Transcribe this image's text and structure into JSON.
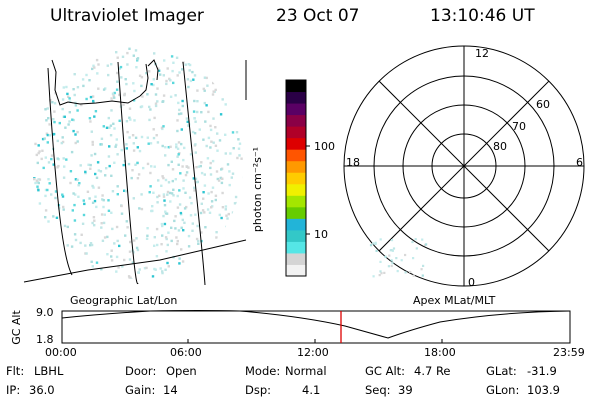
{
  "header": {
    "instrument": "Ultraviolet Imager",
    "date": "23 Oct 07",
    "time": "13:10:46 UT"
  },
  "colorbar": {
    "unit_label": "photon cm⁻²s⁻¹",
    "ticks": [
      {
        "label": "100",
        "value": 100
      },
      {
        "label": "10",
        "value": 10
      }
    ],
    "colors": [
      "#f2f2f2",
      "#d4d4d4",
      "#55e6e6",
      "#33c8c8",
      "#22b4d8",
      "#66cc00",
      "#a4e600",
      "#f0f000",
      "#ffcc00",
      "#ff9900",
      "#ff5500",
      "#dd0000",
      "#b00028",
      "#8a0046",
      "#5a0064",
      "#2a0046",
      "#000000"
    ]
  },
  "polar_grid": {
    "mlt_labels": [
      {
        "label": "12",
        "pos": "top"
      },
      {
        "label": "18",
        "pos": "left"
      },
      {
        "label": "6",
        "pos": "right"
      },
      {
        "label": "0",
        "pos": "bottom"
      }
    ],
    "mlat_labels": [
      {
        "label": "60",
        "value": 60
      },
      {
        "label": "70",
        "value": 70
      },
      {
        "label": "80",
        "value": 80
      }
    ]
  },
  "labels": {
    "left_panel": "Geographic Lat/Lon",
    "right_panel": "Apex MLat/MLT"
  },
  "orbit_plot": {
    "y_axis_label": "GC Alt",
    "y_ticks": [
      "9.0",
      "1.8"
    ],
    "x_ticks": [
      "00:00",
      "06:00",
      "12:00",
      "18:00",
      "23:59"
    ],
    "current_time_hours": 13.18,
    "marker_color": "#dd0000"
  },
  "footer": {
    "row1": [
      {
        "key": "Flt:",
        "value": "LBHL"
      },
      {
        "key": "Door:",
        "value": "Open"
      },
      {
        "key": "Mode:",
        "value": "Normal"
      },
      {
        "key": "GC Alt:",
        "value": "4.7 Re"
      },
      {
        "key": "GLat:",
        "value": "-31.9"
      }
    ],
    "row2": [
      {
        "key": "IP:",
        "value": "36.0"
      },
      {
        "key": "Gain:",
        "value": "14"
      },
      {
        "key": "Dsp:",
        "value": "4.1"
      },
      {
        "key": "Seq:",
        "value": "39"
      },
      {
        "key": "GLon:",
        "value": "103.9"
      }
    ]
  }
}
